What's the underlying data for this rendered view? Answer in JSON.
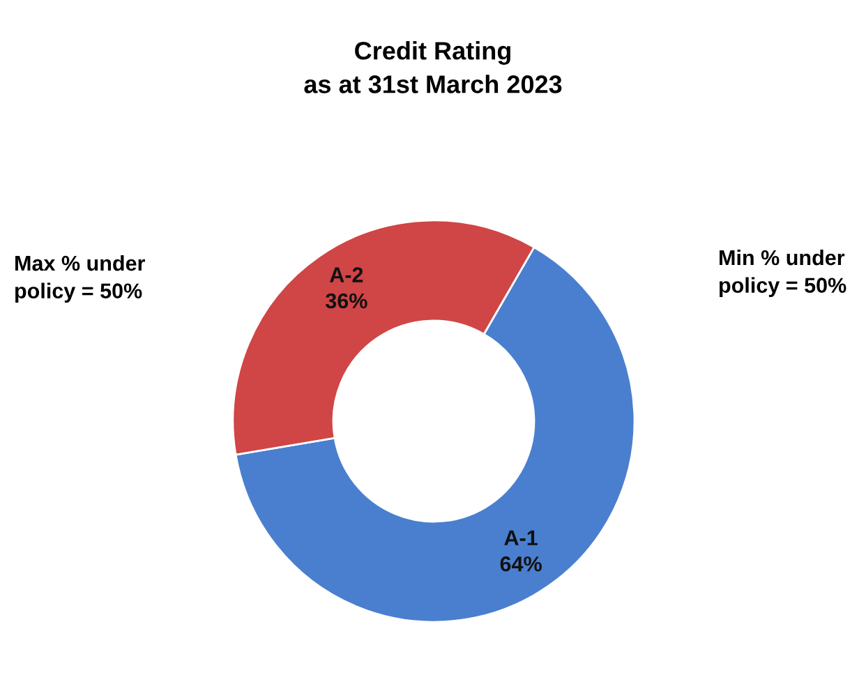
{
  "chart_data": {
    "type": "donut",
    "title": "Credit Rating",
    "subtitle": "as at 31st March 2023",
    "categories": [
      "A-1",
      "A-2"
    ],
    "values": [
      64,
      36
    ],
    "colors": [
      "#4a7fcf",
      "#d04545"
    ],
    "value_labels": [
      "64%",
      "36%"
    ],
    "annotations": [
      "Max % under\npolicy = 50%",
      "Min % under\npolicy = 50%"
    ],
    "legend": false
  }
}
